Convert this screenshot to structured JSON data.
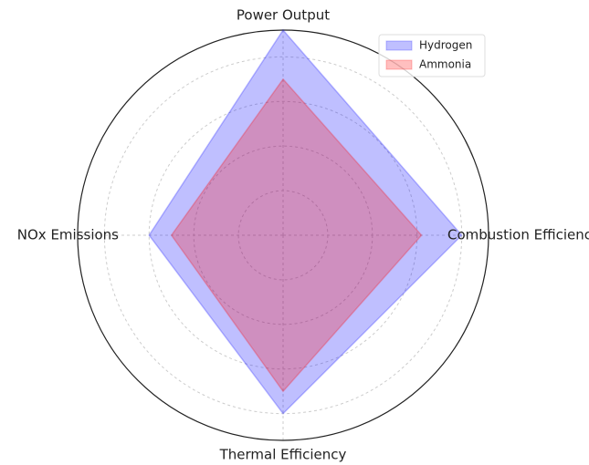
{
  "chart_data": {
    "type": "radar",
    "categories": [
      "Power Output",
      "Combustion Efficiency",
      "Thermal Efficiency",
      "NOx Emissions"
    ],
    "series": [
      {
        "name": "Hydrogen",
        "color": "#0000ff",
        "values": [
          92,
          80,
          80,
          60
        ]
      },
      {
        "name": "Ammonia",
        "color": "#ff0000",
        "values": [
          70,
          62,
          70,
          50
        ]
      }
    ],
    "ylim": [
      0,
      92
    ],
    "yticks": [
      20,
      40,
      60,
      80
    ],
    "grid": true,
    "legend": "upper right"
  }
}
